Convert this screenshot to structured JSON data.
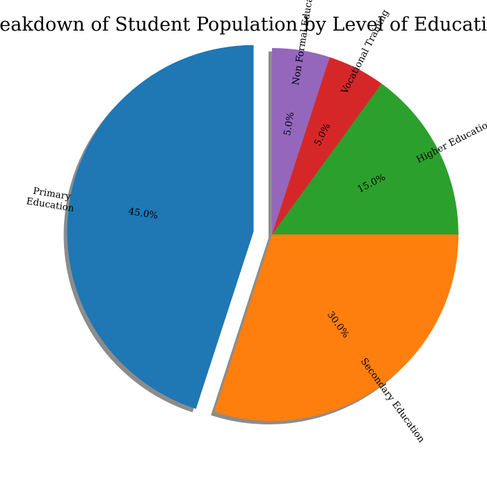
{
  "chart_data": {
    "type": "pie",
    "title": "Breakdown of Student Population by Level of Education",
    "slices": [
      {
        "label": "Primary\nEducation",
        "value": 45.0,
        "pct_label": "45.0%",
        "color": "#1f77b4",
        "exploded": true
      },
      {
        "label": "Secondary Education",
        "value": 30.0,
        "pct_label": "30.0%",
        "color": "#ff7f0e",
        "exploded": false
      },
      {
        "label": "Higher Education",
        "value": 15.0,
        "pct_label": "15.0%",
        "color": "#2ca02c",
        "exploded": false
      },
      {
        "label": "Vocational Training",
        "value": 5.0,
        "pct_label": "5.0%",
        "color": "#d62728",
        "exploded": false
      },
      {
        "label": "Non Formal Education",
        "value": 5.0,
        "pct_label": "5.0%",
        "color": "#9467bd",
        "exploded": false
      }
    ],
    "start_angle": "top",
    "direction": "counterclockwise",
    "shadow": true,
    "labels_rotated": true
  }
}
